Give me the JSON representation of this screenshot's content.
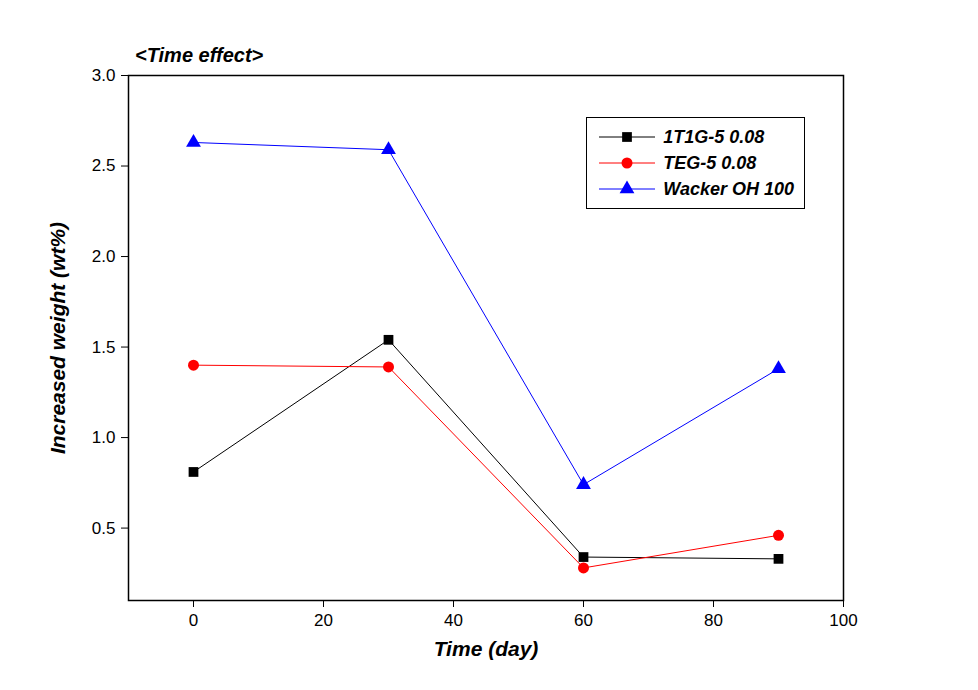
{
  "chart_data": {
    "type": "line",
    "title": "<Time effect>",
    "x_label": "Time (day)",
    "y_label": "Increased weight (wt%)",
    "x": [
      0,
      30,
      60,
      90
    ],
    "series": [
      {
        "name": "1T1G-5 0.08",
        "color": "#000000",
        "marker": "square",
        "values": [
          0.81,
          1.54,
          0.34,
          0.33
        ]
      },
      {
        "name": "TEG-5 0.08",
        "color": "#ff0000",
        "marker": "circle",
        "values": [
          1.4,
          1.39,
          0.28,
          0.46
        ]
      },
      {
        "name": "Wacker OH 100",
        "color": "#0000ff",
        "marker": "triangle",
        "values": [
          2.63,
          2.59,
          0.74,
          1.38
        ]
      }
    ],
    "xlim": [
      -10,
      100
    ],
    "xticks": [
      0,
      20,
      40,
      60,
      80,
      100
    ],
    "ylim": [
      0.1,
      3.0
    ],
    "yticks": [
      0.5,
      {
        "value": 1.0,
        "label": "1.0"
      },
      1.5,
      {
        "value": 2.0,
        "label": "2.0"
      },
      2.5,
      {
        "value": 3.0,
        "label": "3.0"
      }
    ],
    "legend": "top-right",
    "grid": false
  }
}
